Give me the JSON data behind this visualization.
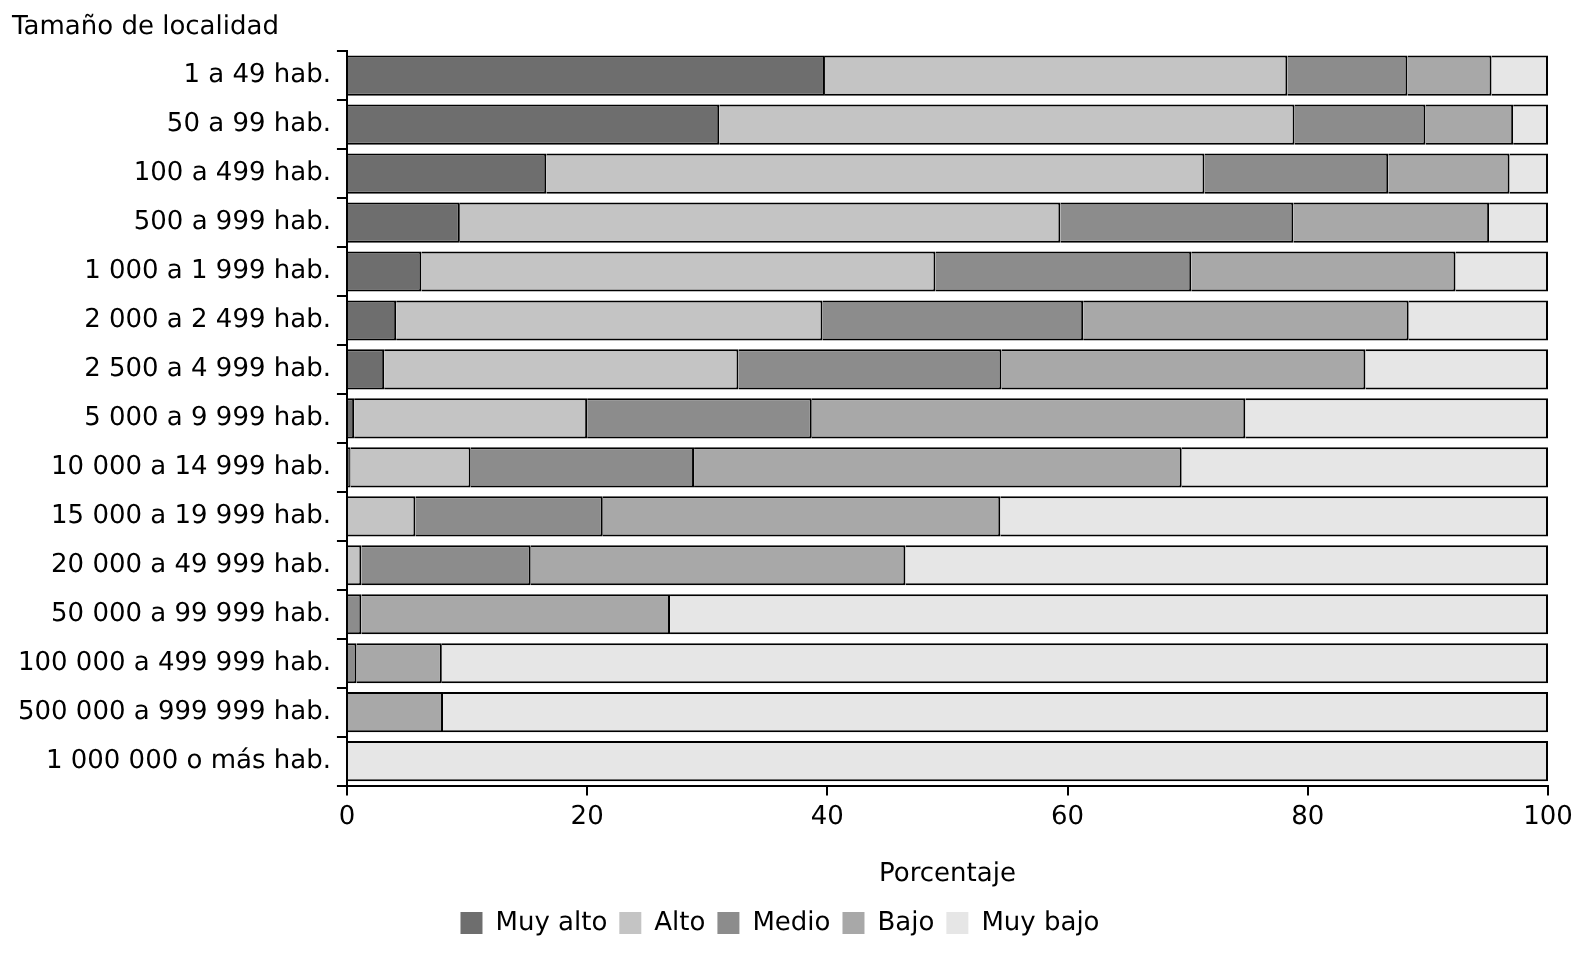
{
  "chart_data": {
    "type": "bar",
    "orientation": "horizontal",
    "stacked": true,
    "ylabel": "Tamaño de localidad",
    "xlabel": "Porcentaje",
    "categories": [
      "1 a 49 hab.",
      "50 a 99 hab.",
      "100 a 499 hab.",
      "500 a 999 hab.",
      "1 000 a 1 999 hab.",
      "2 000 a 2 499 hab.",
      "2 500 a 4 999 hab.",
      "5 000 a 9 999 hab.",
      "10 000 a 14 999 hab.",
      "15 000 a 19 999 hab.",
      "20 000 a 49 999 hab.",
      "50 000 a 99 999 hab.",
      "100 000 a 499 999 hab.",
      "500 000 a 999 999 hab.",
      "1 000 000 o más hab."
    ],
    "series": [
      {
        "name": "Muy alto",
        "color": "#6e6e6e",
        "values": [
          39.8,
          31.0,
          16.6,
          9.4,
          6.2,
          4.1,
          3.1,
          0.6,
          0.3,
          0,
          0,
          0,
          0,
          0,
          0
        ]
      },
      {
        "name": "Alto",
        "color": "#c4c4c4",
        "values": [
          38.5,
          47.9,
          54.8,
          50.0,
          42.8,
          35.5,
          29.5,
          19.4,
          10.0,
          5.7,
          1.2,
          0,
          0,
          0,
          0
        ]
      },
      {
        "name": "Medio",
        "color": "#8c8c8c",
        "values": [
          10.0,
          10.9,
          15.3,
          19.4,
          21.3,
          21.7,
          21.9,
          18.7,
          18.6,
          15.6,
          14.1,
          1.2,
          0.8,
          0,
          0
        ]
      },
      {
        "name": "Bajo",
        "color": "#a8a8a8",
        "values": [
          7.0,
          7.3,
          10.1,
          16.3,
          22.0,
          27.1,
          30.3,
          36.1,
          40.6,
          33.1,
          31.2,
          25.7,
          7.1,
          8.0,
          0
        ]
      },
      {
        "name": "Muy bajo",
        "color": "#e6e6e6",
        "values": [
          4.7,
          2.9,
          3.2,
          4.9,
          7.7,
          11.6,
          15.2,
          25.2,
          30.5,
          45.6,
          53.5,
          73.1,
          92.1,
          92.0,
          100
        ]
      }
    ],
    "xlim": [
      0,
      100
    ],
    "xticks": [
      0,
      20,
      40,
      60,
      80,
      100
    ],
    "grid": false,
    "legend": "bottom"
  }
}
